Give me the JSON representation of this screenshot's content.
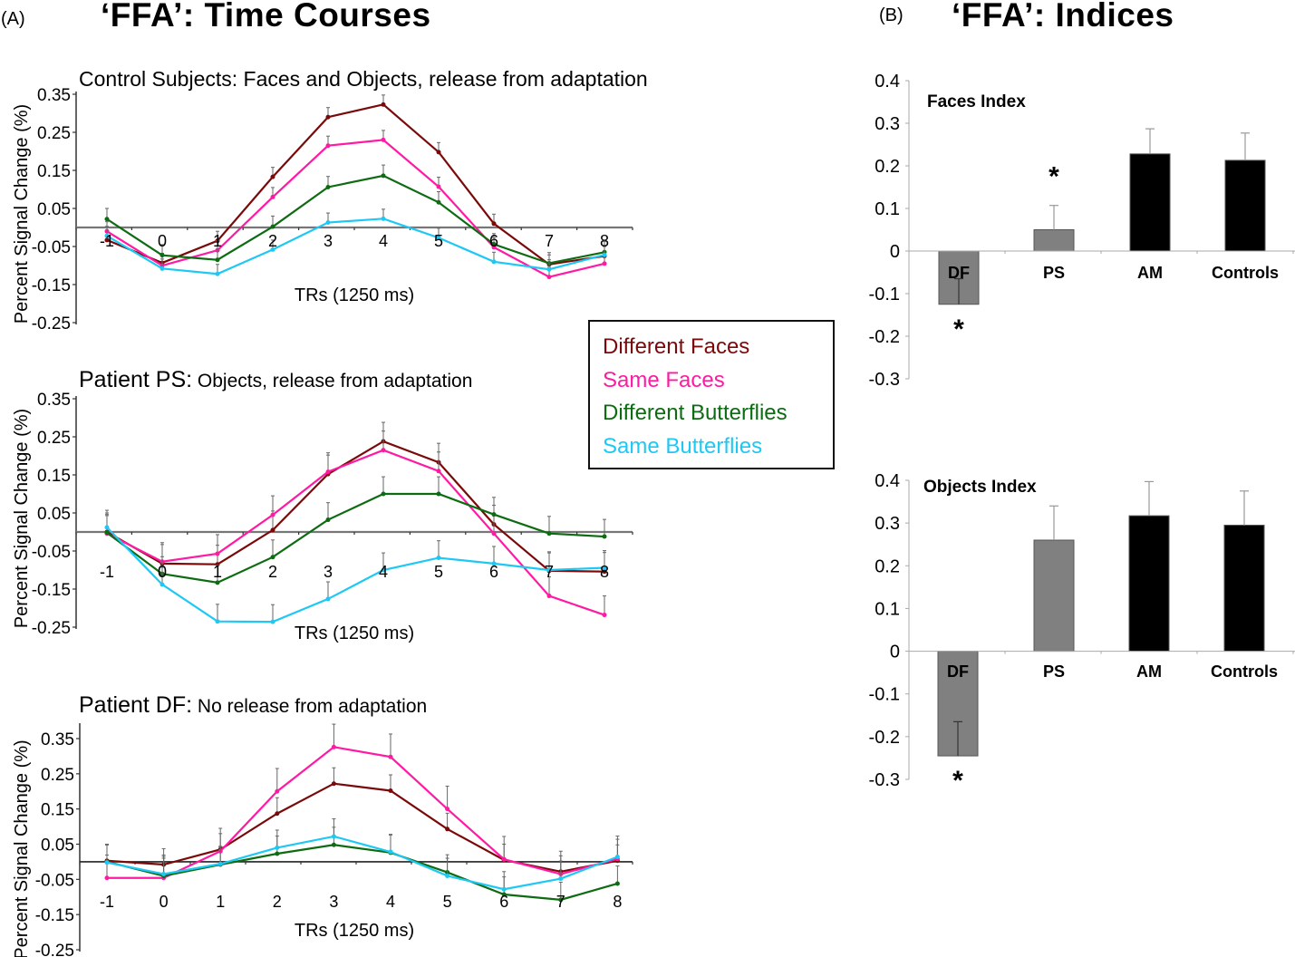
{
  "panels": {
    "a_label": "(A)",
    "a_title": "‘FFA’: Time Courses",
    "b_label": "(B)",
    "b_title": "‘FFA’: Indices"
  },
  "legend": [
    {
      "label": "Different Faces",
      "color": "#7a0a0a"
    },
    {
      "label": "Same Faces",
      "color": "#ff1aa3"
    },
    {
      "label": "Different Butterflies",
      "color": "#0d6b12"
    },
    {
      "label": "Same Butterflies",
      "color": "#1ec8f5"
    }
  ],
  "chart_data": [
    {
      "type": "line",
      "id": "controls",
      "title_bold": "Control Subjects:",
      "title_rest": " Faces and Objects, release from adaptation",
      "xlabel": "TRs (1250 ms)",
      "ylabel": "Percent Signal Change (%)",
      "x": [
        -1,
        0,
        1,
        2,
        3,
        4,
        5,
        6,
        7,
        8
      ],
      "yticks": [
        "0.35",
        "0.25",
        "0.15",
        "0.05",
        "-0.05",
        "-0.15",
        "-0.25"
      ],
      "ylim": [
        -0.25,
        0.35
      ],
      "series": [
        {
          "name": "Different Faces",
          "color": "#7a0a0a",
          "se": 0.025,
          "values": [
            -0.033,
            -0.093,
            -0.035,
            0.133,
            0.29,
            0.323,
            0.198,
            0.01,
            -0.097,
            -0.075
          ]
        },
        {
          "name": "Same Faces",
          "color": "#ff1aa3",
          "se": 0.025,
          "values": [
            -0.01,
            -0.1,
            -0.06,
            0.08,
            0.215,
            0.23,
            0.107,
            -0.052,
            -0.13,
            -0.095
          ]
        },
        {
          "name": "Different Butterflies",
          "color": "#0d6b12",
          "se": 0.028,
          "values": [
            0.022,
            -0.073,
            -0.085,
            0.002,
            0.106,
            0.136,
            0.066,
            -0.044,
            -0.094,
            -0.065
          ]
        },
        {
          "name": "Same Butterflies",
          "color": "#1ec8f5",
          "se": 0.025,
          "values": [
            -0.022,
            -0.108,
            -0.122,
            -0.058,
            0.013,
            0.023,
            -0.027,
            -0.09,
            -0.11,
            -0.072
          ]
        }
      ]
    },
    {
      "type": "line",
      "id": "ps",
      "title_bold": "Patient PS:",
      "title_rest": " Objects, release from adaptation",
      "xlabel": "TRs (1250 ms)",
      "ylabel": "Percent Signal Change (%)",
      "x": [
        -1,
        0,
        1,
        2,
        3,
        4,
        5,
        6,
        7,
        8
      ],
      "yticks": [
        "0.35",
        "0.25",
        "0.15",
        "0.05",
        "-0.05",
        "-0.15",
        "-0.25"
      ],
      "ylim": [
        -0.25,
        0.35
      ],
      "series": [
        {
          "name": "Different Faces",
          "color": "#7a0a0a",
          "se": 0.05,
          "values": [
            0.0,
            -0.083,
            -0.085,
            0.005,
            0.152,
            0.238,
            0.183,
            0.02,
            -0.102,
            -0.104
          ]
        },
        {
          "name": "Same Faces",
          "color": "#ff1aa3",
          "se": 0.05,
          "values": [
            -0.004,
            -0.078,
            -0.057,
            0.045,
            0.158,
            0.215,
            0.16,
            -0.004,
            -0.168,
            -0.218
          ]
        },
        {
          "name": "Different Butterflies",
          "color": "#0d6b12",
          "se": 0.045,
          "values": [
            -0.002,
            -0.11,
            -0.133,
            -0.066,
            0.032,
            0.1,
            0.1,
            0.046,
            -0.004,
            -0.012
          ]
        },
        {
          "name": "Same Butterflies",
          "color": "#1ec8f5",
          "se": 0.045,
          "values": [
            0.012,
            -0.138,
            -0.235,
            -0.236,
            -0.176,
            -0.1,
            -0.068,
            -0.083,
            -0.1,
            -0.094
          ]
        }
      ]
    },
    {
      "type": "line",
      "id": "df",
      "title_bold": "Patient DF:",
      "title_rest": " No release from adaptation",
      "xlabel": "TRs (1250 ms)",
      "ylabel": "Percent Signal Change (%)",
      "x": [
        -1,
        0,
        1,
        2,
        3,
        4,
        5,
        6,
        7,
        8
      ],
      "yticks": [
        "0.35",
        "0.25",
        "0.15",
        "0.05",
        "-0.05",
        "-0.15",
        "-0.25"
      ],
      "ylim": [
        -0.25,
        0.35
      ],
      "series": [
        {
          "name": "Different Faces",
          "color": "#7a0a0a",
          "se": 0.045,
          "values": [
            0.003,
            -0.008,
            0.035,
            0.137,
            0.222,
            0.202,
            0.093,
            0.005,
            -0.028,
            0.003
          ]
        },
        {
          "name": "Same Faces",
          "color": "#ff1aa3",
          "se": 0.065,
          "values": [
            -0.046,
            -0.046,
            0.03,
            0.2,
            0.326,
            0.298,
            0.15,
            0.007,
            -0.035,
            0.008
          ]
        },
        {
          "name": "Different Butterflies",
          "color": "#0d6b12",
          "se": 0.05,
          "values": [
            0.0,
            -0.04,
            -0.008,
            0.023,
            0.048,
            0.026,
            -0.03,
            -0.093,
            -0.108,
            -0.062
          ]
        },
        {
          "name": "Same Butterflies",
          "color": "#1ec8f5",
          "se": 0.05,
          "values": [
            -0.002,
            -0.035,
            -0.006,
            0.04,
            0.072,
            0.028,
            -0.04,
            -0.078,
            -0.048,
            0.014
          ]
        }
      ]
    },
    {
      "type": "bar",
      "id": "faces-index",
      "title": "Faces Index",
      "categories": [
        "DF",
        "PS",
        "AM",
        "Controls"
      ],
      "values": [
        -0.125,
        0.05,
        0.228,
        0.213
      ],
      "se": [
        0.06,
        0.057,
        0.059,
        0.064
      ],
      "colors": [
        "#808080",
        "#808080",
        "#000000",
        "#000000"
      ],
      "significant": [
        true,
        true,
        false,
        false
      ],
      "yticks": [
        "0.4",
        "0.3",
        "0.2",
        "0.1",
        "0",
        "-0.1",
        "-0.2",
        "-0.3"
      ],
      "ylim": [
        -0.3,
        0.4
      ],
      "annotation": "*"
    },
    {
      "type": "bar",
      "id": "objects-index",
      "title": "Objects Index",
      "categories": [
        "DF",
        "PS",
        "AM",
        "Controls"
      ],
      "values": [
        -0.245,
        0.26,
        0.317,
        0.295
      ],
      "se": [
        0.08,
        0.08,
        0.08,
        0.08
      ],
      "colors": [
        "#808080",
        "#808080",
        "#000000",
        "#000000"
      ],
      "significant": [
        true,
        false,
        false,
        false
      ],
      "yticks": [
        "0.4",
        "0.3",
        "0.2",
        "0.1",
        "0",
        "-0.1",
        "-0.2",
        "-0.3"
      ],
      "ylim": [
        -0.3,
        0.4
      ],
      "annotation": "*"
    }
  ]
}
